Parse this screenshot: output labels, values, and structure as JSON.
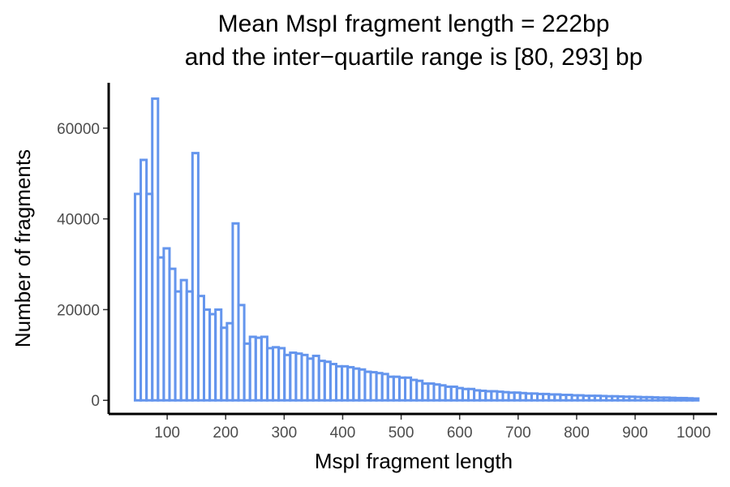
{
  "chart_data": {
    "type": "bar",
    "title_lines": [
      "Mean MspI fragment length = 222bp",
      "and the inter−quartile range is [80, 293] bp"
    ],
    "xlabel": "MspI fragment length",
    "ylabel": "Number of fragments",
    "xlim": [
      0,
      1040
    ],
    "ylim": [
      -3000,
      70000
    ],
    "x_ticks": [
      100,
      200,
      300,
      400,
      500,
      600,
      700,
      800,
      900,
      1000
    ],
    "x_tick_labels": [
      "100",
      "200",
      "300",
      "400",
      "500",
      "600",
      "700",
      "800",
      "900",
      "1000"
    ],
    "y_ticks": [
      0,
      20000,
      40000,
      60000
    ],
    "y_tick_labels": [
      "0",
      "20000",
      "40000",
      "60000"
    ],
    "bin_edges": [
      45,
      1008
    ],
    "bar_color": "#6495ED",
    "grid": false,
    "values": [
      45500,
      53000,
      45500,
      66500,
      31500,
      33500,
      29000,
      24000,
      26500,
      24000,
      54500,
      23000,
      20000,
      19000,
      20000,
      16000,
      17000,
      39000,
      21000,
      12500,
      14000,
      13800,
      14000,
      11500,
      11700,
      11500,
      10000,
      10500,
      10300,
      10000,
      9200,
      9800,
      8700,
      8500,
      8000,
      7500,
      7500,
      7300,
      7000,
      6800,
      6300,
      6200,
      6000,
      5800,
      5200,
      5200,
      5000,
      5000,
      4500,
      4300,
      3700,
      3700,
      3500,
      3300,
      3000,
      3000,
      2700,
      2500,
      2500,
      2200,
      2100,
      2000,
      2000,
      1900,
      1800,
      1700,
      1700,
      1600,
      1500,
      1500,
      1400,
      1400,
      1300,
      1300,
      1200,
      1200,
      1100,
      1100,
      1000,
      1000,
      1000,
      950,
      900,
      900,
      850,
      800,
      800,
      750,
      700,
      700,
      650,
      600,
      600,
      550,
      500,
      500,
      450,
      400
    ]
  }
}
